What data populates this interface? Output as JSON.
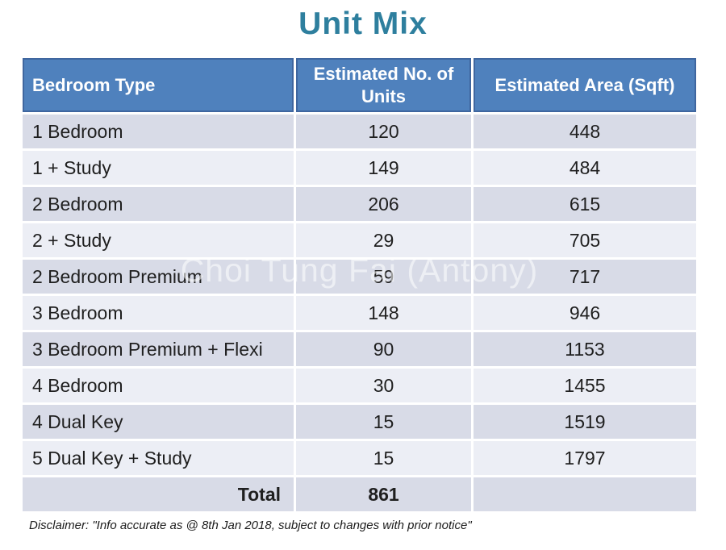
{
  "title": "Unit Mix",
  "watermark": "Choi Tung Fai (Antony)",
  "disclaimer": "Disclaimer: \"Info accurate as @ 8th Jan 2018, subject to changes with prior notice\"",
  "colors": {
    "title_text": "#2e7f9e",
    "header_bg": "#4f81bd",
    "header_border": "#3f669f",
    "header_text": "#ffffff",
    "row_odd_bg": "#d8dbe7",
    "row_even_bg": "#eceef5",
    "body_text": "#1f1f1f"
  },
  "table": {
    "headers": [
      "Bedroom Type",
      "Estimated No. of Units",
      "Estimated Area (Sqft)"
    ],
    "rows": [
      [
        "1 Bedroom",
        "120",
        "448"
      ],
      [
        "1 + Study",
        "149",
        "484"
      ],
      [
        "2 Bedroom",
        "206",
        "615"
      ],
      [
        "2 + Study",
        "29",
        "705"
      ],
      [
        "2 Bedroom Premium",
        "59",
        "717"
      ],
      [
        "3 Bedroom",
        "148",
        "946"
      ],
      [
        "3 Bedroom Premium + Flexi",
        "90",
        "1153"
      ],
      [
        "4 Bedroom",
        "30",
        "1455"
      ],
      [
        "4 Dual Key",
        "15",
        "1519"
      ],
      [
        "5 Dual Key + Study",
        "15",
        "1797"
      ]
    ],
    "total_label": "Total",
    "total_units": "861",
    "total_area": ""
  },
  "chart_data": {
    "type": "table",
    "title": "Unit Mix",
    "columns": [
      "Bedroom Type",
      "Estimated No. of Units",
      "Estimated Area (Sqft)"
    ],
    "rows": [
      {
        "bedroom_type": "1 Bedroom",
        "units": 120,
        "area_sqft": 448
      },
      {
        "bedroom_type": "1 + Study",
        "units": 149,
        "area_sqft": 484
      },
      {
        "bedroom_type": "2 Bedroom",
        "units": 206,
        "area_sqft": 615
      },
      {
        "bedroom_type": "2 + Study",
        "units": 29,
        "area_sqft": 705
      },
      {
        "bedroom_type": "2 Bedroom Premium",
        "units": 59,
        "area_sqft": 717
      },
      {
        "bedroom_type": "3 Bedroom",
        "units": 148,
        "area_sqft": 946
      },
      {
        "bedroom_type": "3 Bedroom Premium + Flexi",
        "units": 90,
        "area_sqft": 1153
      },
      {
        "bedroom_type": "4 Bedroom",
        "units": 30,
        "area_sqft": 1455
      },
      {
        "bedroom_type": "4 Dual Key",
        "units": 15,
        "area_sqft": 1519
      },
      {
        "bedroom_type": "5 Dual Key + Study",
        "units": 15,
        "area_sqft": 1797
      }
    ],
    "total_units": 861
  }
}
